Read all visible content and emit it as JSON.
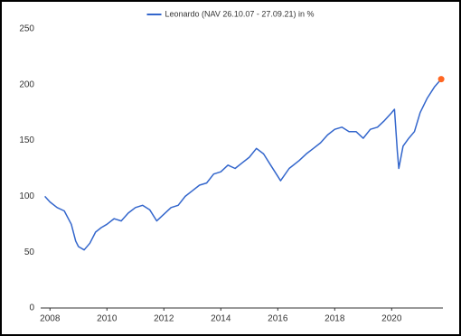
{
  "chart_data": {
    "type": "line",
    "legend": "Leonardo (NAV 26.10.07 - 27.09.21) in %",
    "legend_position": "top",
    "x": [
      2007.82,
      2008.0,
      2008.25,
      2008.5,
      2008.75,
      2008.9,
      2009.0,
      2009.2,
      2009.4,
      2009.6,
      2009.8,
      2010.0,
      2010.25,
      2010.5,
      2010.75,
      2011.0,
      2011.25,
      2011.5,
      2011.75,
      2012.0,
      2012.25,
      2012.5,
      2012.75,
      2013.0,
      2013.25,
      2013.5,
      2013.75,
      2014.0,
      2014.25,
      2014.5,
      2014.75,
      2015.0,
      2015.25,
      2015.5,
      2015.75,
      2016.0,
      2016.1,
      2016.4,
      2016.75,
      2017.0,
      2017.25,
      2017.5,
      2017.75,
      2018.0,
      2018.25,
      2018.5,
      2018.75,
      2019.0,
      2019.25,
      2019.5,
      2019.75,
      2020.0,
      2020.1,
      2020.2,
      2020.25,
      2020.4,
      2020.6,
      2020.8,
      2021.0,
      2021.25,
      2021.5,
      2021.74
    ],
    "series": [
      {
        "name": "Leonardo (NAV 26.10.07 - 27.09.21) in %",
        "color": "#3366cc",
        "values": [
          100,
          95,
          90,
          87,
          75,
          60,
          55,
          52,
          58,
          68,
          72,
          75,
          80,
          78,
          85,
          90,
          92,
          88,
          78,
          84,
          90,
          92,
          100,
          105,
          110,
          112,
          120,
          122,
          128,
          125,
          130,
          135,
          143,
          138,
          128,
          118,
          114,
          125,
          132,
          138,
          143,
          148,
          155,
          160,
          162,
          158,
          158,
          152,
          160,
          162,
          168,
          175,
          178,
          140,
          125,
          145,
          152,
          158,
          175,
          188,
          198,
          205
        ]
      }
    ],
    "end_marker_color": "#ff6622",
    "xlim": [
      2007.8,
      2021.8
    ],
    "xticks": [
      2008,
      2010,
      2012,
      2014,
      2016,
      2018,
      2020
    ],
    "ylim": [
      0,
      250
    ],
    "yticks": [
      0,
      50,
      100,
      150,
      200,
      250
    ],
    "grid": false
  }
}
